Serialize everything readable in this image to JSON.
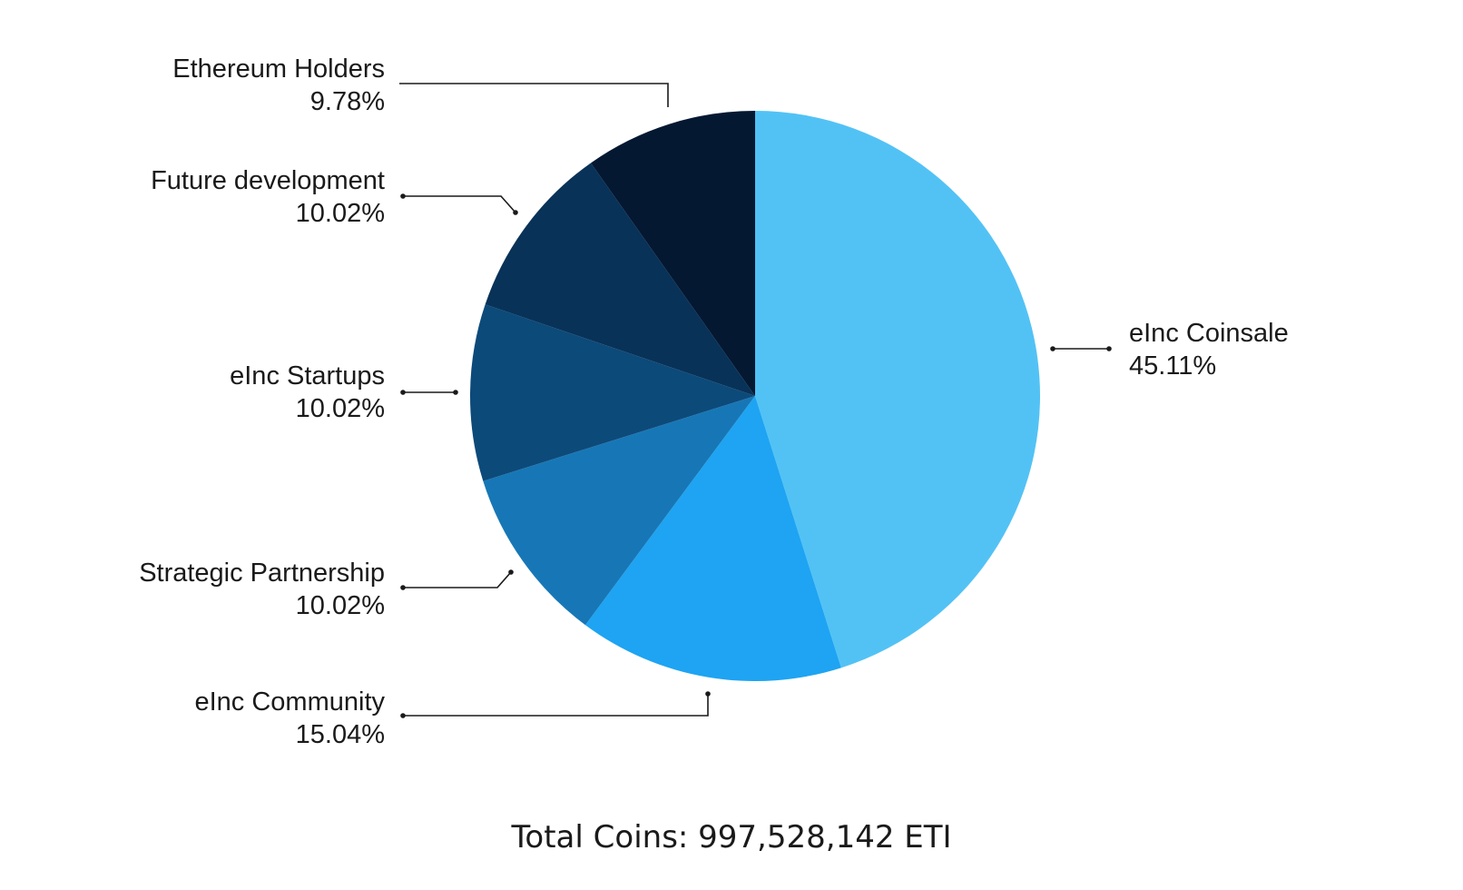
{
  "chart_data": {
    "type": "pie",
    "start_angle_deg": 0,
    "direction": "clockwise",
    "slices": [
      {
        "label": "eInc Coinsale",
        "value": 45.11,
        "value_label": "45.11%",
        "color": "#52c2f5"
      },
      {
        "label": "eInc Community",
        "value": 15.04,
        "value_label": "15.04%",
        "color": "#1ea4f2"
      },
      {
        "label": "Strategic Partnership",
        "value": 10.02,
        "value_label": "10.02%",
        "color": "#1777b6"
      },
      {
        "label": "eInc Startups",
        "value": 10.02,
        "value_label": "10.02%",
        "color": "#0c4a7a"
      },
      {
        "label": "Future development",
        "value": 10.02,
        "value_label": "10.02%",
        "color": "#083258"
      },
      {
        "label": "Ethereum Holders",
        "value": 9.78,
        "value_label": "9.78%",
        "color": "#041832"
      }
    ],
    "legend": "none",
    "label_placement": "outside with leader lines"
  },
  "footer": {
    "total": "Total Coins: 997,528,142 ETI"
  },
  "colors": {
    "text": "#1a1a1a",
    "background": "#ffffff"
  }
}
